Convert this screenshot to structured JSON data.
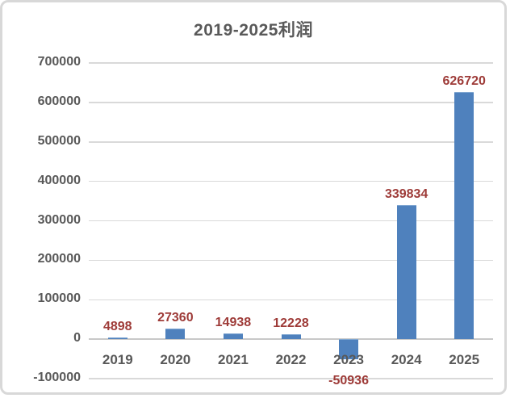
{
  "chart_data": {
    "type": "bar",
    "title": "2019-2025利润",
    "categories": [
      "2019",
      "2020",
      "2021",
      "2022",
      "2023",
      "2024",
      "2025"
    ],
    "values": [
      4898,
      27360,
      14938,
      12228,
      -50936,
      339834,
      626720
    ],
    "data_labels": [
      "4898",
      "27360",
      "14938",
      "12228",
      "-50936",
      "339834",
      "626720"
    ],
    "y_ticks": [
      700000,
      600000,
      500000,
      400000,
      300000,
      200000,
      100000,
      0,
      -100000
    ],
    "y_tick_labels": [
      "700000",
      "600000",
      "500000",
      "400000",
      "300000",
      "200000",
      "100000",
      "0",
      "-100000"
    ],
    "ylim": [
      -100000,
      700000
    ],
    "xlabel": "",
    "ylabel": "",
    "grid": true,
    "legend": false,
    "colors": {
      "bar": "#4f81bd",
      "bar_top_edge": "#7fa6d1",
      "data_label": "#9e3b38",
      "axis_text": "#595959",
      "gridline": "#d9d9d9",
      "frame_border": "#d8d8d8",
      "background": "#ffffff"
    }
  }
}
